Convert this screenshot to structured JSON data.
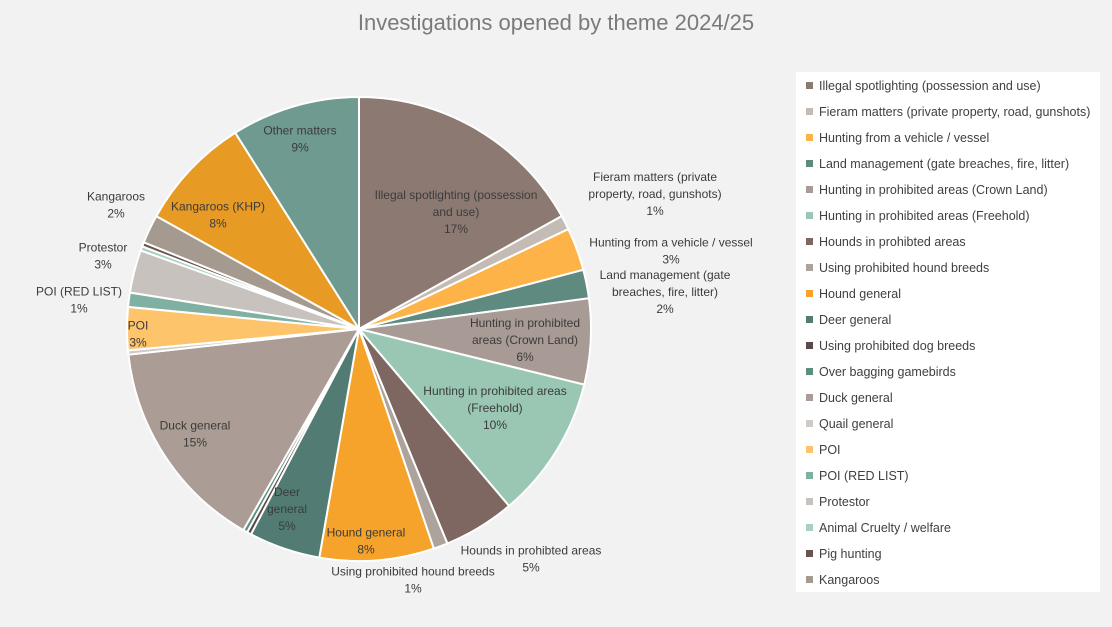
{
  "chart_data": {
    "type": "pie",
    "title": "Investigations opened by theme 2024/25",
    "legend_position": "right",
    "slices": [
      {
        "name": "Illegal spotlighting (possession and use)",
        "value": 17,
        "pct_label": "17%",
        "color": "#8c7a72",
        "label_lines": [
          "Illegal spotlighting (possession",
          "and use)"
        ]
      },
      {
        "name": "Fieram matters (private property, road, gunshots)",
        "value": 1,
        "pct_label": "1%",
        "color": "#c3bbb4",
        "label_lines": [
          "Fieram matters (private",
          "property, road, gunshots)"
        ]
      },
      {
        "name": "Hunting from a vehicle / vessel",
        "value": 3,
        "pct_label": "3%",
        "color": "#fdb347",
        "label_lines": [
          "Hunting from a vehicle / vessel"
        ]
      },
      {
        "name": "Land management (gate breaches, fire, litter)",
        "value": 2,
        "pct_label": "2%",
        "color": "#5e8a80",
        "label_lines": [
          "Land management (gate",
          "breaches, fire, litter)"
        ]
      },
      {
        "name": "Hunting in prohibited areas (Crown Land)",
        "value": 6,
        "pct_label": "6%",
        "color": "#a89a94",
        "label_lines": [
          "Hunting in prohibited",
          "areas (Crown Land)"
        ]
      },
      {
        "name": "Hunting in prohibited areas (Freehold)",
        "value": 10,
        "pct_label": "10%",
        "color": "#99c7b3",
        "label_lines": [
          "Hunting in prohibited areas",
          "(Freehold)"
        ]
      },
      {
        "name": "Hounds in prohibted areas",
        "value": 5,
        "pct_label": "5%",
        "color": "#7f6761",
        "label_lines": [
          "Hounds in prohibted areas"
        ]
      },
      {
        "name": "Using prohibited hound breeds",
        "value": 1,
        "pct_label": "1%",
        "color": "#aca39c",
        "label_lines": [
          "Using prohibited hound breeds"
        ]
      },
      {
        "name": "Hound general",
        "value": 8,
        "pct_label": "8%",
        "color": "#f5a32a",
        "label_lines": [
          "Hound general"
        ]
      },
      {
        "name": "Deer general",
        "value": 5,
        "pct_label": "5%",
        "color": "#527c73",
        "label_lines": [
          "Deer",
          "general"
        ]
      },
      {
        "name": "Using prohibited dog breeds",
        "value": 0.3,
        "pct_label": "",
        "color": "#5b4a47",
        "label_lines": []
      },
      {
        "name": "Over bagging gamebirds",
        "value": 0.3,
        "pct_label": "",
        "color": "#5d8f80",
        "label_lines": []
      },
      {
        "name": "Duck general",
        "value": 15,
        "pct_label": "15%",
        "color": "#ab9c95",
        "label_lines": [
          "Duck general"
        ]
      },
      {
        "name": "Quail general",
        "value": 0.3,
        "pct_label": "",
        "color": "#cfcac6",
        "label_lines": []
      },
      {
        "name": "POI",
        "value": 3,
        "pct_label": "3%",
        "color": "#fdc46c",
        "label_lines": [
          "POI"
        ]
      },
      {
        "name": "POI (RED LIST)",
        "value": 1,
        "pct_label": "1%",
        "color": "#7fb0a1",
        "label_lines": [
          "POI (RED LIST)"
        ]
      },
      {
        "name": "Protestor",
        "value": 3,
        "pct_label": "3%",
        "color": "#c8c2be",
        "label_lines": [
          "Protestor"
        ]
      },
      {
        "name": "Animal Cruelty / welfare",
        "value": 0.3,
        "pct_label": "",
        "color": "#a8d1c4",
        "label_lines": []
      },
      {
        "name": "Pig hunting",
        "value": 0.3,
        "pct_label": "",
        "color": "#6b5450",
        "label_lines": []
      },
      {
        "name": "Kangaroos",
        "value": 2,
        "pct_label": "2%",
        "color": "#a59a8f",
        "label_lines": [
          "Kangaroos"
        ]
      },
      {
        "name": "Kangaroos (KHP)",
        "value": 8,
        "pct_label": "8%",
        "color": "#e79a24",
        "label_lines": [
          "Kangaroos (KHP)"
        ]
      },
      {
        "name": "Other matters",
        "value": 9,
        "pct_label": "9%",
        "color": "#6f9a90",
        "label_lines": [
          "Other matters"
        ]
      }
    ],
    "legend": [
      {
        "label": "Illegal spotlighting (possession and use)",
        "color": "#8c7a72"
      },
      {
        "label": "Fieram matters (private property, road, gunshots)",
        "color": "#c3bbb4"
      },
      {
        "label": "Hunting from a vehicle / vessel",
        "color": "#fdb347"
      },
      {
        "label": "Land management (gate breaches, fire, litter)",
        "color": "#5e8a80"
      },
      {
        "label": "Hunting in prohibited areas (Crown Land)",
        "color": "#a89a94"
      },
      {
        "label": "Hunting in prohibited areas (Freehold)",
        "color": "#99c7b3"
      },
      {
        "label": "Hounds in prohibted areas",
        "color": "#7f6761"
      },
      {
        "label": "Using prohibited hound breeds",
        "color": "#aca39c"
      },
      {
        "label": "Hound general",
        "color": "#f5a32a"
      },
      {
        "label": "Deer general",
        "color": "#527c73"
      },
      {
        "label": "Using prohibited dog breeds",
        "color": "#5b4a47"
      },
      {
        "label": "Over bagging gamebirds",
        "color": "#5d8f80"
      },
      {
        "label": "Duck general",
        "color": "#ab9c95"
      },
      {
        "label": "Quail general",
        "color": "#cfcac6"
      },
      {
        "label": "POI",
        "color": "#fdc46c"
      },
      {
        "label": "POI (RED LIST)",
        "color": "#7fb0a1"
      },
      {
        "label": "Protestor",
        "color": "#c8c2be"
      },
      {
        "label": "Animal Cruelty / welfare",
        "color": "#a8d1c4"
      },
      {
        "label": "Pig hunting",
        "color": "#6b5450"
      },
      {
        "label": "Kangaroos",
        "color": "#a59a8f"
      }
    ]
  }
}
